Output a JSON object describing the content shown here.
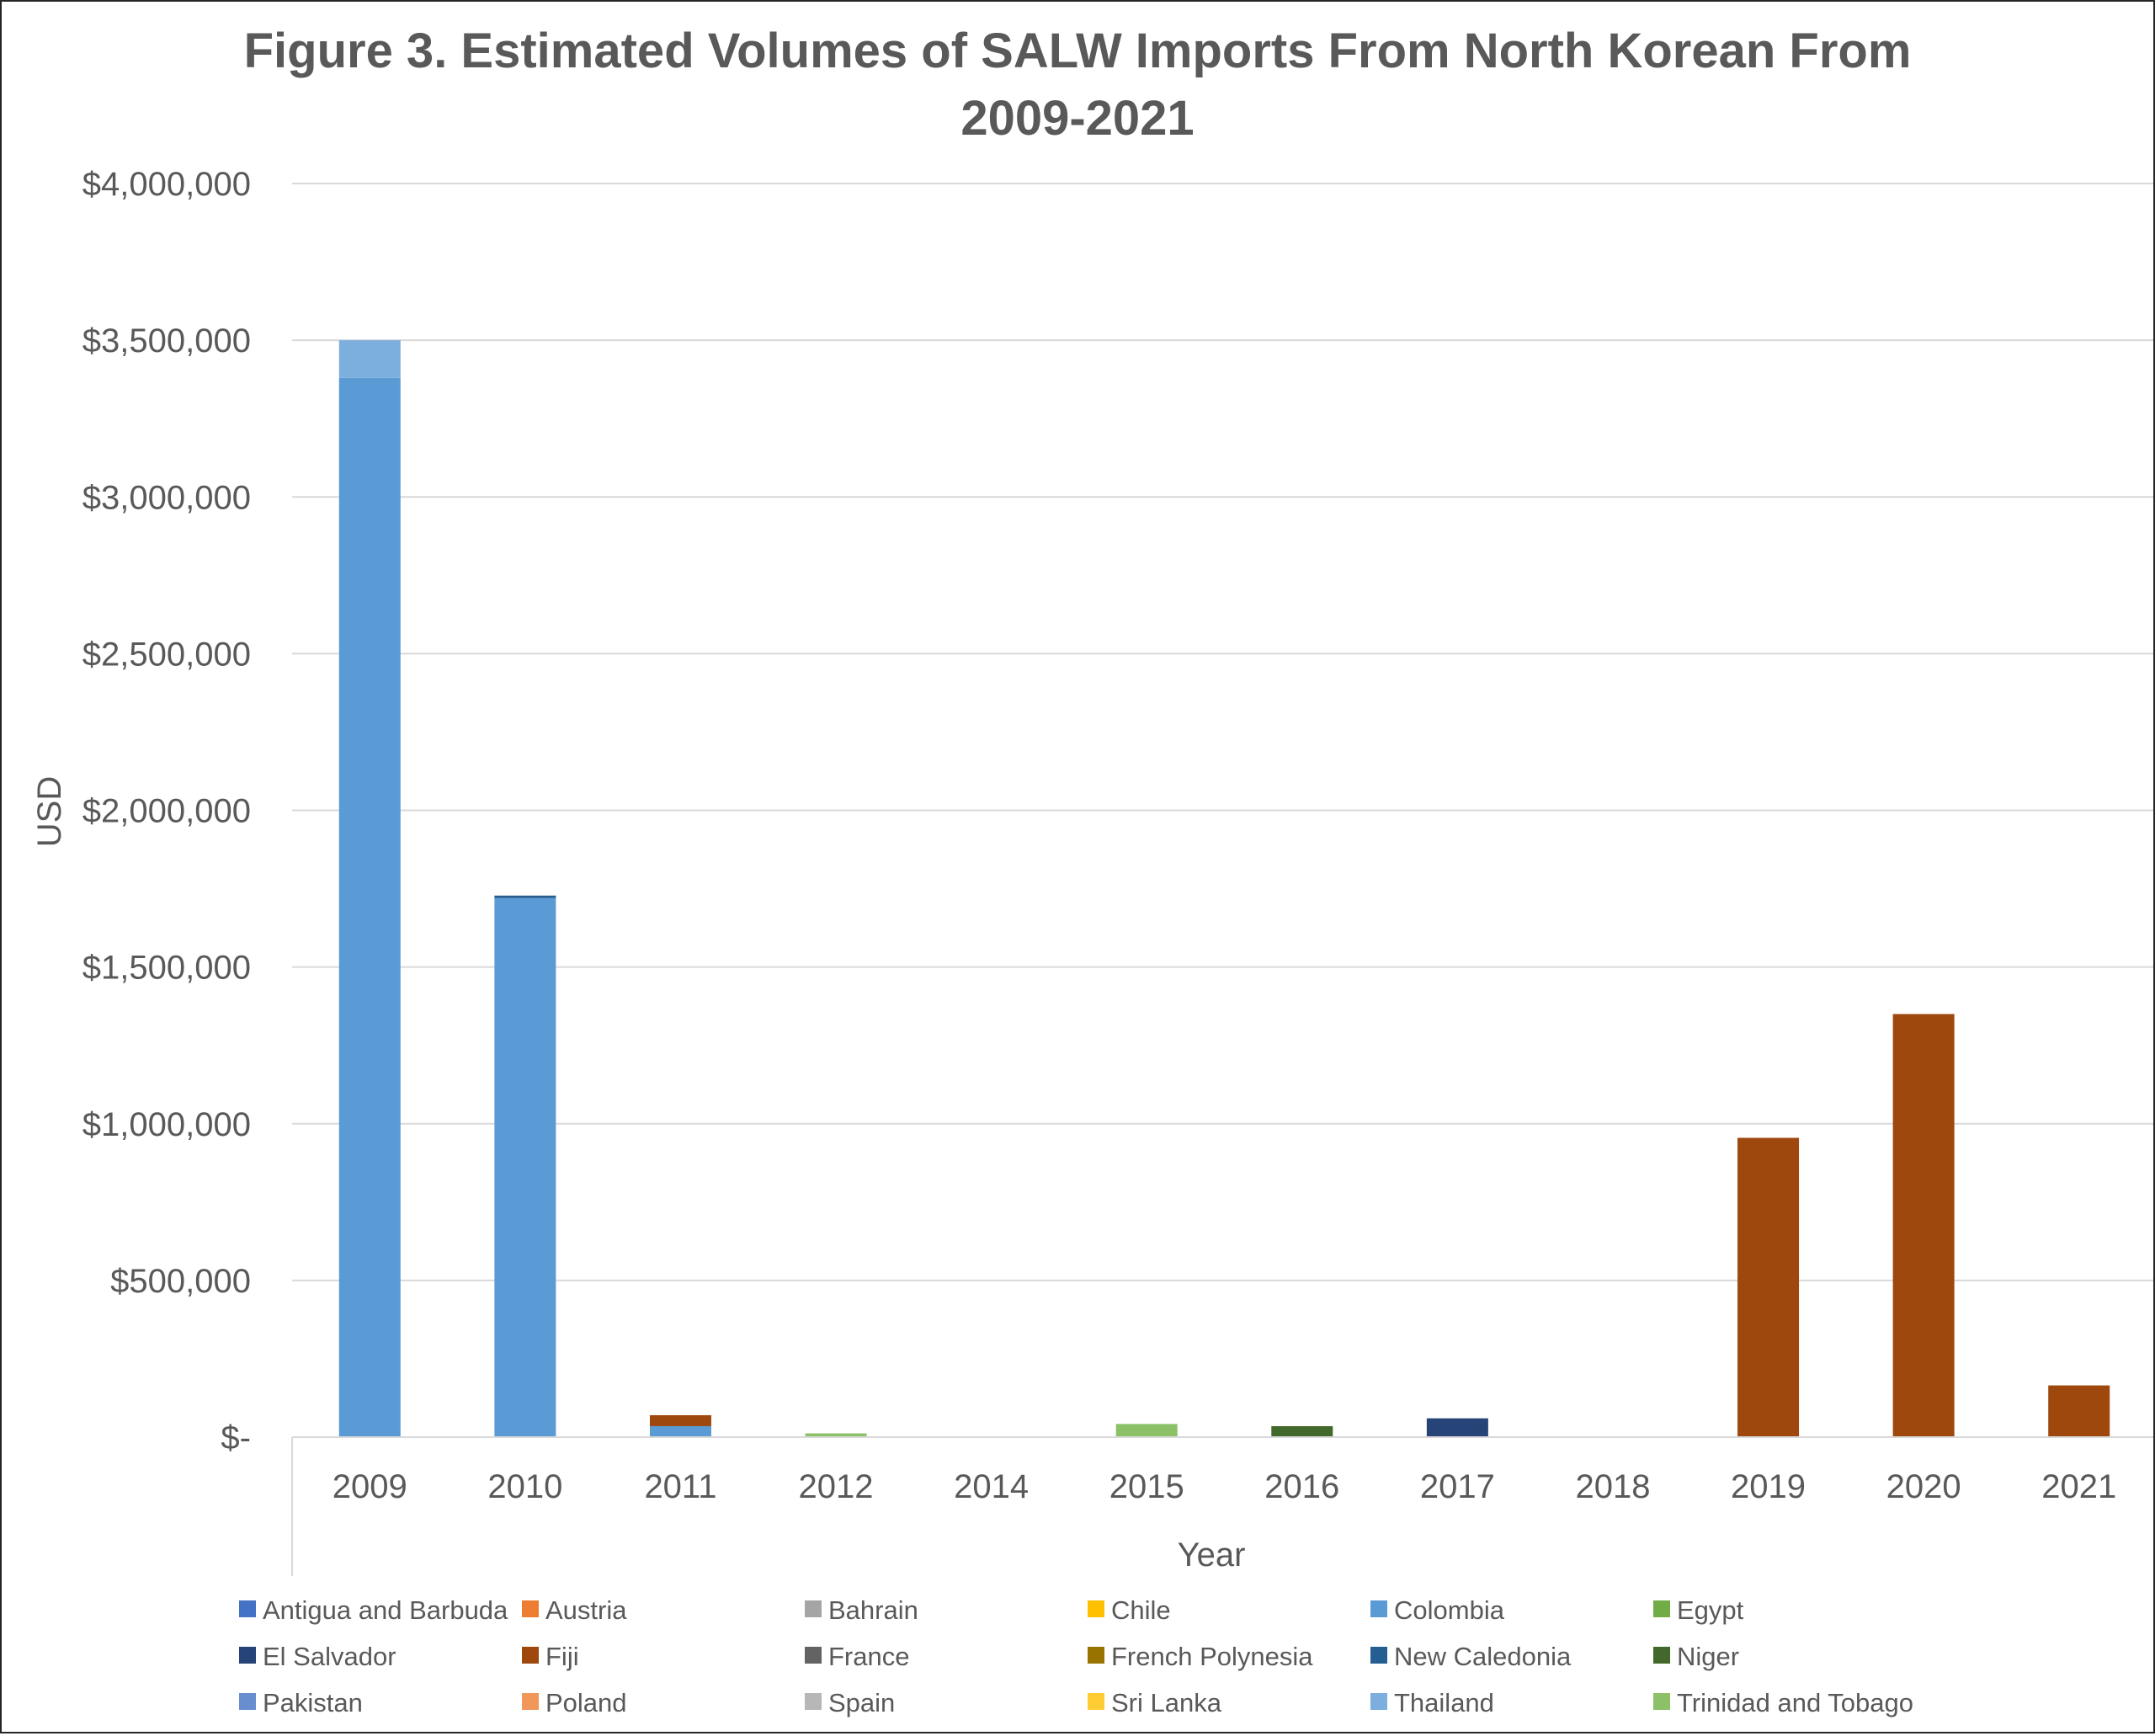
{
  "chart_data": {
    "type": "bar",
    "stacked": true,
    "title": "Figure 3. Estimated Volumes of SALW Imports From North Korean From 2009-2021",
    "title_lines": [
      "Figure 3. Estimated Volumes of SALW Imports From North Korean From",
      "2009-2021"
    ],
    "xlabel": "Year",
    "ylabel": "USD",
    "ylim": [
      0,
      4000000
    ],
    "y_ticks": [
      0,
      500000,
      1000000,
      1500000,
      2000000,
      2500000,
      3000000,
      3500000,
      4000000
    ],
    "y_tick_labels": [
      "$-",
      "$500,000",
      "$1,000,000",
      "$1,500,000",
      "$2,000,000",
      "$2,500,000",
      "$3,000,000",
      "$3,500,000",
      "$4,000,000"
    ],
    "grid": "horizontal",
    "legend_position": "bottom",
    "categories": [
      "2009",
      "2010",
      "2011",
      "2012",
      "2014",
      "2015",
      "2016",
      "2017",
      "2018",
      "2019",
      "2020",
      "2021"
    ],
    "series": [
      {
        "name": "Antigua and Barbuda",
        "color": "#4472C4",
        "values": [
          0,
          0,
          0,
          0,
          0,
          0,
          0,
          0,
          0,
          0,
          0,
          0
        ]
      },
      {
        "name": "Austria",
        "color": "#ED7D31",
        "values": [
          0,
          0,
          0,
          0,
          0,
          0,
          0,
          0,
          0,
          0,
          0,
          0
        ]
      },
      {
        "name": "Bahrain",
        "color": "#A5A5A5",
        "values": [
          0,
          0,
          0,
          0,
          0,
          0,
          0,
          0,
          0,
          0,
          0,
          0
        ]
      },
      {
        "name": "Chile",
        "color": "#FFC000",
        "values": [
          0,
          0,
          0,
          0,
          0,
          0,
          0,
          0,
          0,
          0,
          0,
          0
        ]
      },
      {
        "name": "Colombia",
        "color": "#5B9BD5",
        "values": [
          3380000,
          1720000,
          35000,
          0,
          0,
          0,
          0,
          0,
          0,
          0,
          0,
          0
        ]
      },
      {
        "name": "Egypt",
        "color": "#70AD47",
        "values": [
          0,
          0,
          0,
          0,
          0,
          0,
          0,
          0,
          0,
          0,
          0,
          0
        ]
      },
      {
        "name": "El Salvador",
        "color": "#264478",
        "values": [
          0,
          0,
          0,
          0,
          0,
          0,
          0,
          60000,
          0,
          0,
          0,
          0
        ]
      },
      {
        "name": "Fiji",
        "color": "#9E480E",
        "values": [
          0,
          0,
          35000,
          0,
          0,
          0,
          0,
          0,
          0,
          955000,
          1350000,
          165000
        ]
      },
      {
        "name": "France",
        "color": "#636363",
        "values": [
          0,
          0,
          0,
          0,
          0,
          0,
          0,
          0,
          0,
          0,
          0,
          0
        ]
      },
      {
        "name": "French Polynesia",
        "color": "#997300",
        "values": [
          0,
          0,
          0,
          0,
          0,
          0,
          0,
          0,
          0,
          0,
          0,
          0
        ]
      },
      {
        "name": "New Caledonia",
        "color": "#255E91",
        "values": [
          0,
          8000,
          0,
          0,
          0,
          0,
          0,
          0,
          0,
          0,
          0,
          0
        ]
      },
      {
        "name": "Niger",
        "color": "#43682B",
        "values": [
          0,
          0,
          0,
          0,
          0,
          0,
          35000,
          0,
          0,
          0,
          0,
          0
        ]
      },
      {
        "name": "Pakistan",
        "color": "#698ED0",
        "values": [
          0,
          0,
          0,
          0,
          0,
          0,
          0,
          0,
          0,
          0,
          0,
          0
        ]
      },
      {
        "name": "Poland",
        "color": "#F1975A",
        "values": [
          0,
          0,
          0,
          0,
          0,
          0,
          0,
          0,
          0,
          0,
          0,
          0
        ]
      },
      {
        "name": "Spain",
        "color": "#B7B7B7",
        "values": [
          0,
          0,
          0,
          0,
          0,
          0,
          0,
          0,
          0,
          0,
          0,
          0
        ]
      },
      {
        "name": "Sri Lanka",
        "color": "#FFCD33",
        "values": [
          0,
          0,
          0,
          0,
          0,
          0,
          0,
          0,
          0,
          0,
          0,
          0
        ]
      },
      {
        "name": "Thailand",
        "color": "#7CAFDD",
        "values": [
          120000,
          0,
          0,
          0,
          0,
          0,
          0,
          0,
          0,
          0,
          0,
          0
        ]
      },
      {
        "name": "Trinidad and Tobago",
        "color": "#8CC168",
        "values": [
          0,
          0,
          0,
          12000,
          0,
          42000,
          0,
          0,
          0,
          0,
          0,
          0
        ]
      }
    ]
  }
}
